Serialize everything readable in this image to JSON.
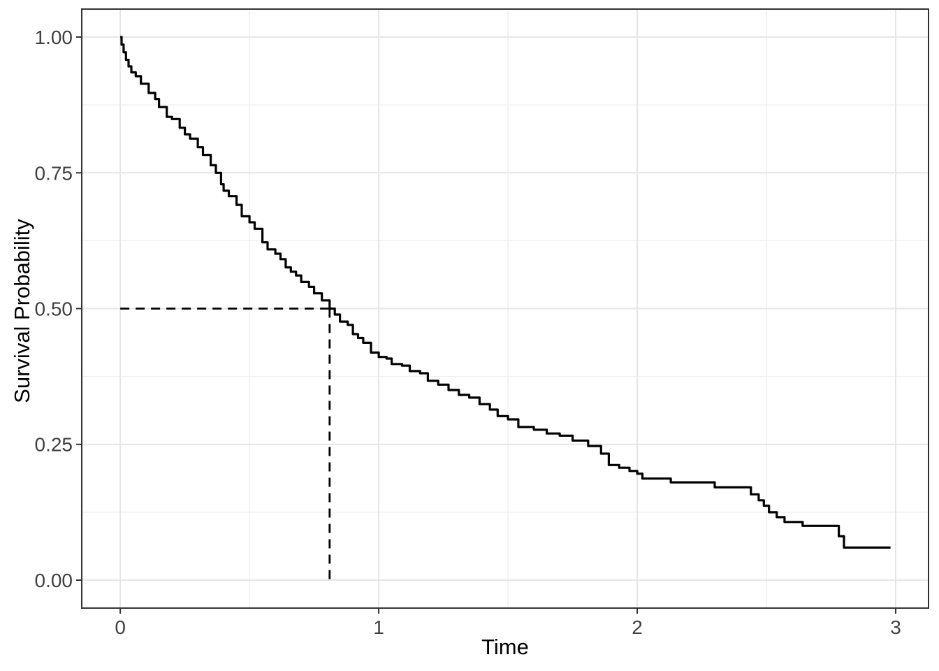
{
  "figure": {
    "xlabel": "Time",
    "ylabel": "Survival Probability"
  },
  "chart_data": {
    "type": "line",
    "subtype": "kaplan-meier-step-curve",
    "title": "",
    "xlabel": "Time",
    "ylabel": "Survival Probability",
    "xlim": [
      -0.149,
      3.127
    ],
    "ylim": [
      -0.0515,
      1.0515
    ],
    "x_data_range": [
      0,
      2.98
    ],
    "y_data_range": [
      0,
      1
    ],
    "grid": true,
    "legend_position": "none",
    "x_ticks": [
      {
        "value": 0,
        "label": "0"
      },
      {
        "value": 1,
        "label": "1"
      },
      {
        "value": 2,
        "label": "2"
      },
      {
        "value": 3,
        "label": "3"
      }
    ],
    "y_ticks": [
      {
        "value": 0.0,
        "label": "0.00"
      },
      {
        "value": 0.25,
        "label": "0.25"
      },
      {
        "value": 0.5,
        "label": "0.50"
      },
      {
        "value": 0.75,
        "label": "0.75"
      },
      {
        "value": 1.0,
        "label": "1.00"
      }
    ],
    "x_minor": [
      0.5,
      1.5,
      2.5
    ],
    "y_minor": [
      0.125,
      0.375,
      0.625,
      0.875
    ],
    "median_annotation": {
      "time": 0.81,
      "survival": 0.5,
      "style": "dashed",
      "segments": "horizontal-from-x0-and-vertical-to-y0"
    },
    "series": [
      {
        "name": "overall-survival",
        "type": "step",
        "points": [
          [
            0,
            1.0
          ],
          [
            0.005,
            0.986
          ],
          [
            0.013,
            0.972
          ],
          [
            0.022,
            0.958
          ],
          [
            0.032,
            0.946
          ],
          [
            0.043,
            0.935
          ],
          [
            0.06,
            0.928
          ],
          [
            0.08,
            0.914
          ],
          [
            0.11,
            0.897
          ],
          [
            0.135,
            0.886
          ],
          [
            0.15,
            0.871
          ],
          [
            0.18,
            0.853
          ],
          [
            0.2,
            0.849
          ],
          [
            0.23,
            0.833
          ],
          [
            0.25,
            0.821
          ],
          [
            0.27,
            0.813
          ],
          [
            0.3,
            0.797
          ],
          [
            0.32,
            0.783
          ],
          [
            0.35,
            0.764
          ],
          [
            0.37,
            0.75
          ],
          [
            0.39,
            0.729
          ],
          [
            0.4,
            0.717
          ],
          [
            0.42,
            0.707
          ],
          [
            0.45,
            0.691
          ],
          [
            0.47,
            0.67
          ],
          [
            0.5,
            0.659
          ],
          [
            0.52,
            0.647
          ],
          [
            0.55,
            0.622
          ],
          [
            0.57,
            0.609
          ],
          [
            0.6,
            0.601
          ],
          [
            0.62,
            0.591
          ],
          [
            0.64,
            0.576
          ],
          [
            0.66,
            0.568
          ],
          [
            0.68,
            0.561
          ],
          [
            0.7,
            0.549
          ],
          [
            0.73,
            0.54
          ],
          [
            0.75,
            0.528
          ],
          [
            0.78,
            0.515
          ],
          [
            0.81,
            0.5
          ],
          [
            0.83,
            0.489
          ],
          [
            0.85,
            0.476
          ],
          [
            0.88,
            0.47
          ],
          [
            0.9,
            0.453
          ],
          [
            0.92,
            0.446
          ],
          [
            0.94,
            0.437
          ],
          [
            0.97,
            0.419
          ],
          [
            1.0,
            0.411
          ],
          [
            1.03,
            0.408
          ],
          [
            1.05,
            0.398
          ],
          [
            1.09,
            0.395
          ],
          [
            1.12,
            0.385
          ],
          [
            1.16,
            0.381
          ],
          [
            1.19,
            0.367
          ],
          [
            1.23,
            0.36
          ],
          [
            1.27,
            0.35
          ],
          [
            1.31,
            0.341
          ],
          [
            1.35,
            0.336
          ],
          [
            1.39,
            0.324
          ],
          [
            1.43,
            0.314
          ],
          [
            1.46,
            0.302
          ],
          [
            1.5,
            0.296
          ],
          [
            1.54,
            0.282
          ],
          [
            1.6,
            0.277
          ],
          [
            1.65,
            0.27
          ],
          [
            1.7,
            0.266
          ],
          [
            1.75,
            0.257
          ],
          [
            1.81,
            0.247
          ],
          [
            1.86,
            0.233
          ],
          [
            1.89,
            0.212
          ],
          [
            1.93,
            0.207
          ],
          [
            1.97,
            0.201
          ],
          [
            2.0,
            0.196
          ],
          [
            2.02,
            0.187
          ],
          [
            2.13,
            0.18
          ],
          [
            2.3,
            0.171
          ],
          [
            2.44,
            0.158
          ],
          [
            2.47,
            0.147
          ],
          [
            2.49,
            0.137
          ],
          [
            2.51,
            0.125
          ],
          [
            2.54,
            0.116
          ],
          [
            2.57,
            0.107
          ],
          [
            2.64,
            0.1
          ],
          [
            2.78,
            0.081
          ],
          [
            2.8,
            0.06
          ],
          [
            2.98,
            0.06
          ]
        ]
      }
    ],
    "colors": {
      "curve": "#000000",
      "median_line": "#000000",
      "grid_major": "#e6e6e6",
      "grid_minor": "#f0f0f0",
      "panel_border": "#333333",
      "tick_mark": "#333333",
      "tick_label": "#404040",
      "axis_title": "#000000",
      "background": "#ffffff"
    }
  }
}
